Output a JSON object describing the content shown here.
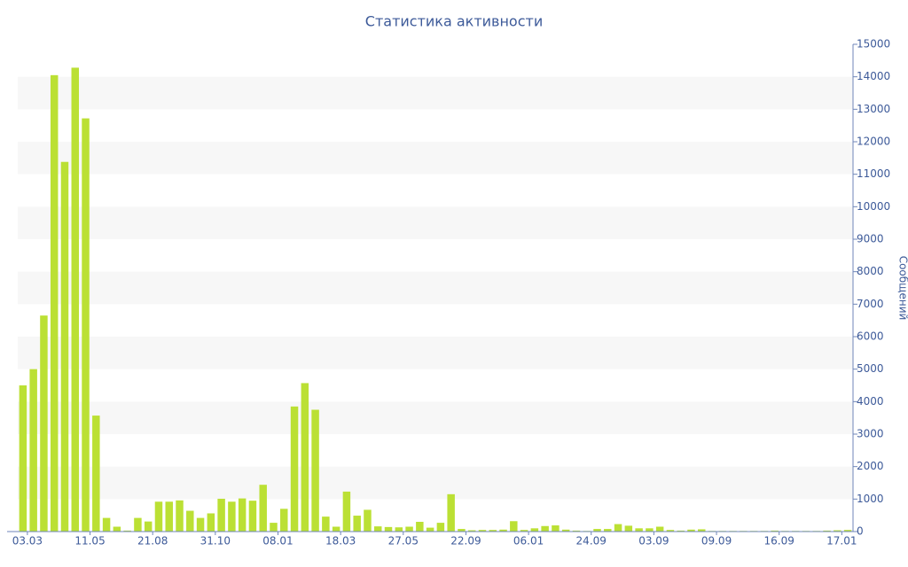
{
  "chart_data": {
    "type": "bar",
    "title": "Статистика активности",
    "y_label": "Сообщений",
    "categories": [
      "03.03",
      null,
      null,
      null,
      null,
      null,
      "11.05",
      null,
      null,
      null,
      null,
      null,
      "21.08",
      null,
      null,
      null,
      null,
      null,
      "31.10",
      null,
      null,
      null,
      null,
      null,
      "08.01",
      null,
      null,
      null,
      null,
      null,
      "18.03",
      null,
      null,
      null,
      null,
      null,
      "27.05",
      null,
      null,
      null,
      null,
      null,
      "22.09",
      null,
      null,
      null,
      null,
      null,
      "06.01",
      null,
      null,
      null,
      null,
      null,
      "24.09",
      null,
      null,
      null,
      null,
      null,
      "03.09",
      null,
      null,
      null,
      null,
      null,
      "09.09",
      null,
      null,
      null,
      null,
      null,
      "16.09",
      null,
      null,
      null,
      null,
      null,
      "17.01",
      null
    ],
    "values": [
      4500,
      5000,
      6650,
      14050,
      11380,
      14280,
      12720,
      3570,
      420,
      150,
      30,
      420,
      310,
      920,
      920,
      960,
      640,
      420,
      560,
      1010,
      920,
      1020,
      950,
      1440,
      270,
      700,
      3850,
      4570,
      3750,
      460,
      150,
      1230,
      490,
      670,
      160,
      140,
      130,
      150,
      300,
      120,
      270,
      1150,
      80,
      40,
      50,
      50,
      60,
      320,
      50,
      100,
      170,
      190,
      60,
      30,
      20,
      80,
      80,
      230,
      180,
      100,
      100,
      150,
      50,
      30,
      60,
      70,
      20,
      20,
      20,
      20,
      20,
      20,
      30,
      20,
      20,
      20,
      20,
      30,
      40,
      50
    ],
    "color": "#bbe034",
    "ylim": [
      0,
      15000
    ],
    "yticks": [
      0,
      1000,
      2000,
      3000,
      4000,
      5000,
      6000,
      7000,
      8000,
      9000,
      10000,
      11000,
      12000,
      13000,
      14000,
      15000
    ],
    "grid": true
  }
}
